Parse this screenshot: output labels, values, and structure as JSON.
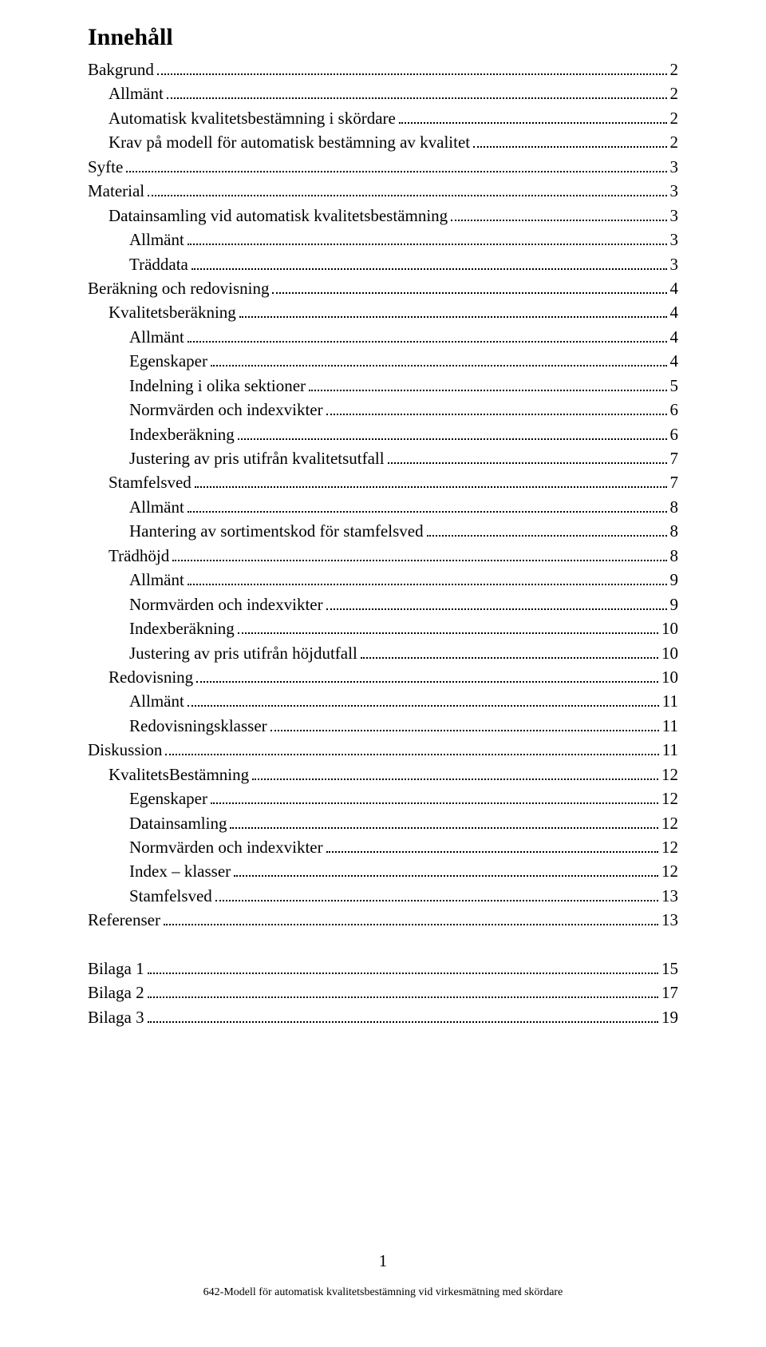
{
  "title": "Innehåll",
  "page_number": "1",
  "footer": "642-Modell för automatisk kvalitetsbestämning vid virkesmätning med skördare",
  "colors": {
    "text": "#000000",
    "background": "#ffffff",
    "dot": "#000000"
  },
  "typography": {
    "title_fontsize": 30,
    "entry_fontsize": 21,
    "footer_fontsize": 14,
    "font_family": "Garamond"
  },
  "toc": [
    {
      "label": "Bakgrund",
      "page": "2",
      "level": 0
    },
    {
      "label": "Allmänt",
      "page": "2",
      "level": 1
    },
    {
      "label": "Automatisk kvalitetsbestämning i skördare",
      "page": "2",
      "level": 1
    },
    {
      "label": "Krav på modell för automatisk bestämning av kvalitet",
      "page": "2",
      "level": 1
    },
    {
      "label": "Syfte",
      "page": "3",
      "level": 0
    },
    {
      "label": "Material",
      "page": "3",
      "level": 0
    },
    {
      "label": "Datainsamling vid automatisk kvalitetsbestämning",
      "page": "3",
      "level": 1
    },
    {
      "label": "Allmänt",
      "page": "3",
      "level": 2
    },
    {
      "label": "Träddata",
      "page": "3",
      "level": 2
    },
    {
      "label": "Beräkning och redovisning",
      "page": "4",
      "level": 0
    },
    {
      "label": "Kvalitetsberäkning",
      "page": "4",
      "level": 1
    },
    {
      "label": "Allmänt",
      "page": "4",
      "level": 2
    },
    {
      "label": "Egenskaper",
      "page": "4",
      "level": 2
    },
    {
      "label": "Indelning i olika sektioner",
      "page": "5",
      "level": 2
    },
    {
      "label": "Normvärden och indexvikter",
      "page": "6",
      "level": 2
    },
    {
      "label": "Indexberäkning",
      "page": "6",
      "level": 2
    },
    {
      "label": "Justering av pris utifrån kvalitetsutfall",
      "page": "7",
      "level": 2
    },
    {
      "label": "Stamfelsved",
      "page": "7",
      "level": 1
    },
    {
      "label": "Allmänt",
      "page": "8",
      "level": 2
    },
    {
      "label": "Hantering av sortimentskod för stamfelsved",
      "page": "8",
      "level": 2
    },
    {
      "label": "Trädhöjd",
      "page": "8",
      "level": 1
    },
    {
      "label": "Allmänt",
      "page": "9",
      "level": 2
    },
    {
      "label": "Normvärden och indexvikter",
      "page": "9",
      "level": 2
    },
    {
      "label": "Indexberäkning",
      "page": "10",
      "level": 2
    },
    {
      "label": "Justering av pris utifrån höjdutfall",
      "page": "10",
      "level": 2
    },
    {
      "label": "Redovisning",
      "page": "10",
      "level": 1
    },
    {
      "label": "Allmänt",
      "page": "11",
      "level": 2
    },
    {
      "label": "Redovisningsklasser",
      "page": "11",
      "level": 2
    },
    {
      "label": "Diskussion",
      "page": "11",
      "level": 0
    },
    {
      "label": "KvalitetsBestämning",
      "page": "12",
      "level": 1
    },
    {
      "label": "Egenskaper",
      "page": "12",
      "level": 2
    },
    {
      "label": "Datainsamling",
      "page": "12",
      "level": 2
    },
    {
      "label": "Normvärden och indexvikter",
      "page": "12",
      "level": 2
    },
    {
      "label": "Index – klasser",
      "page": "12",
      "level": 2
    },
    {
      "label": "Stamfelsved",
      "page": "13",
      "level": 2
    },
    {
      "label": "Referenser",
      "page": "13",
      "level": 0
    },
    {
      "label": "__SPACER__",
      "page": "",
      "level": 0
    },
    {
      "label": "Bilaga 1",
      "page": "15",
      "level": 0
    },
    {
      "label": "Bilaga 2",
      "page": "17",
      "level": 0
    },
    {
      "label": "Bilaga 3",
      "page": "19",
      "level": 0
    }
  ]
}
